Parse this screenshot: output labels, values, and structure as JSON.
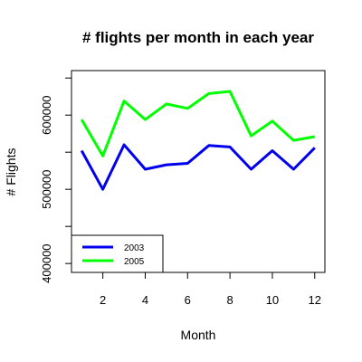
{
  "chart_data": {
    "type": "line",
    "title": "# flights per month in each year",
    "xlabel": "Month",
    "ylabel": "# Flights",
    "x": [
      1,
      2,
      3,
      4,
      5,
      6,
      7,
      8,
      9,
      10,
      11,
      12
    ],
    "xticks": [
      2,
      4,
      6,
      8,
      10,
      12
    ],
    "yticks": [
      400000,
      500000,
      600000
    ],
    "xlim": [
      0.52,
      12.48
    ],
    "ylim": [
      388000,
      660000
    ],
    "grid": false,
    "legend_position": "bottom-left",
    "series": [
      {
        "name": "2003",
        "color": "#0000ee",
        "values": [
          552000,
          500000,
          560000,
          527000,
          533000,
          535000,
          559000,
          557000,
          527000,
          552000,
          527000,
          556000
        ]
      },
      {
        "name": "2005",
        "color": "#00ff00",
        "values": [
          594000,
          545000,
          619000,
          594000,
          615000,
          609000,
          629000,
          632000,
          572000,
          592000,
          566000,
          571000
        ]
      }
    ]
  }
}
